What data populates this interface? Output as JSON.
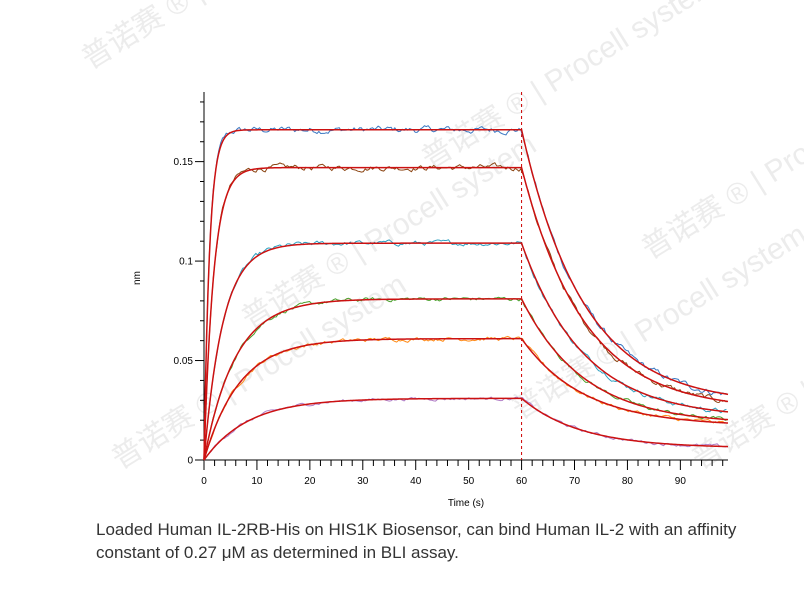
{
  "chart_data": {
    "type": "line",
    "title": "",
    "xlabel": "Time (s)",
    "ylabel": "nm",
    "xlim": [
      0,
      99
    ],
    "ylim": [
      0,
      0.185
    ],
    "x_ticks": [
      0,
      10,
      20,
      30,
      40,
      50,
      60,
      70,
      80,
      90
    ],
    "y_ticks": [
      0,
      0.05,
      0.1,
      0.15
    ],
    "y_tick_labels": [
      "0",
      "0.05",
      "0.1",
      "0.15"
    ],
    "association_end": 60,
    "grid": false,
    "series": [
      {
        "color": "#3a78c2",
        "fit_color": "#cc1111",
        "kobs": 0.95,
        "plateau": 0.166,
        "koff": 0.085,
        "residual": 0.028,
        "noise": 0.0025
      },
      {
        "color": "#8b4513",
        "fit_color": "#cc1111",
        "kobs": 0.55,
        "plateau": 0.147,
        "koff": 0.085,
        "residual": 0.025,
        "noise": 0.0022
      },
      {
        "color": "#2fa0c0",
        "fit_color": "#cc1111",
        "kobs": 0.28,
        "plateau": 0.109,
        "koff": 0.085,
        "residual": 0.021,
        "noise": 0.0018
      },
      {
        "color": "#4aa02c",
        "fit_color": "#cc1111",
        "kobs": 0.17,
        "plateau": 0.081,
        "koff": 0.085,
        "residual": 0.018,
        "noise": 0.0015
      },
      {
        "color": "#ff8c1a",
        "fit_color": "#cc1111",
        "kobs": 0.15,
        "plateau": 0.061,
        "koff": 0.085,
        "residual": 0.017,
        "noise": 0.0015
      },
      {
        "color": "#b07cc6",
        "fit_color": "#cc1111",
        "kobs": 0.12,
        "plateau": 0.031,
        "koff": 0.09,
        "residual": 0.006,
        "noise": 0.0012
      }
    ]
  },
  "caption": "Loaded Human IL-2RB-His on HIS1K Biosensor, can bind Human IL-2 with an affinity constant of 0.27 μM as determined in BLI assay.",
  "watermark": "普诺赛 ® | Procell system",
  "colors": {
    "axis": "#000000",
    "marker_line": "#cc0000",
    "caption_text": "#333333"
  }
}
